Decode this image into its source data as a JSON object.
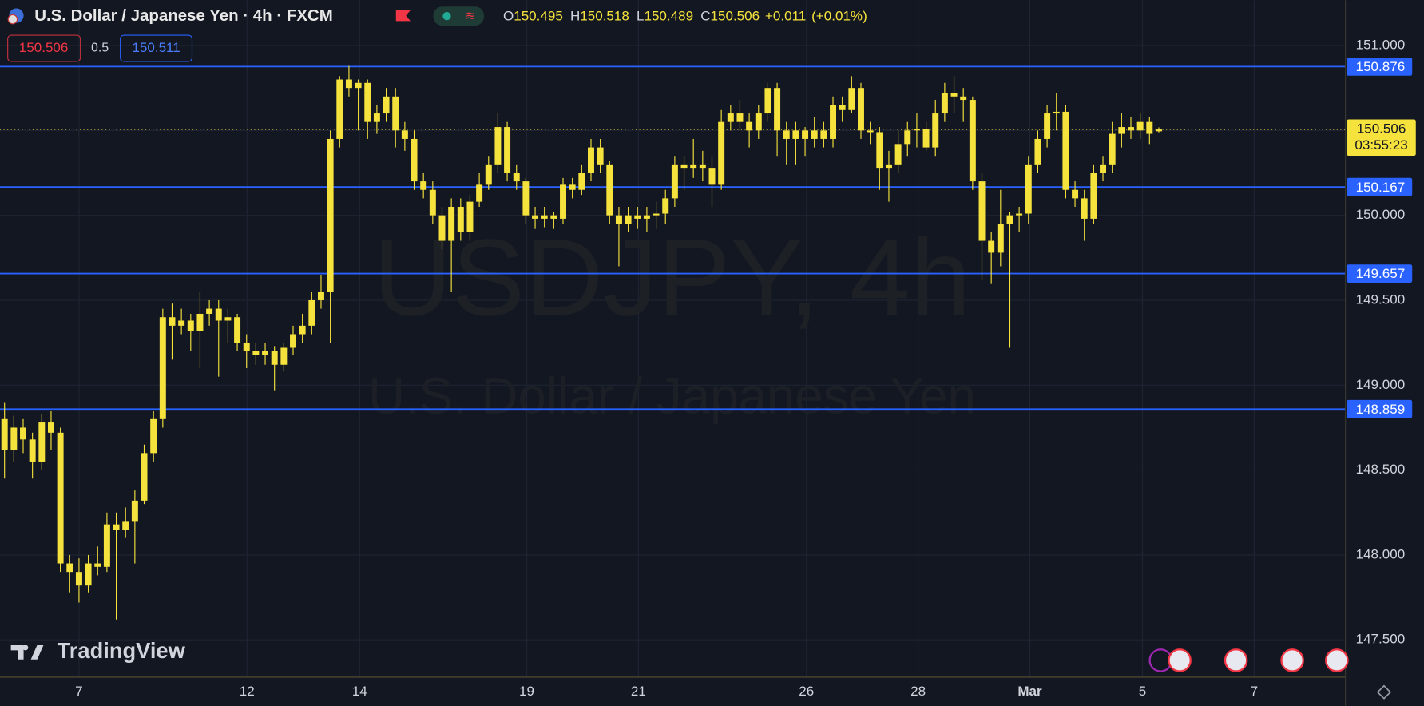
{
  "header": {
    "title": "U.S. Dollar / Japanese Yen · 4h · FXCM",
    "ohlc_labels": [
      "O",
      "H",
      "L",
      "C"
    ],
    "ohlc": [
      150.495,
      150.518,
      150.489,
      150.506
    ],
    "change": "+0.011",
    "change_pct": "(+0.01%)",
    "sell": "150.506",
    "spread": "0.5",
    "buy": "150.511"
  },
  "watermark": {
    "symbol": "USDJPY, 4h",
    "name": "U.S. Dollar / Japanese Yen"
  },
  "brand": "TradingView",
  "chart_data": {
    "type": "candlestick",
    "color": "#f5e23c",
    "candles": [
      [
        148.8,
        148.9,
        148.45,
        148.62
      ],
      [
        148.62,
        148.82,
        148.55,
        148.75
      ],
      [
        148.75,
        148.8,
        148.6,
        148.68
      ],
      [
        148.68,
        148.72,
        148.45,
        148.55
      ],
      [
        148.55,
        148.83,
        148.5,
        148.78
      ],
      [
        148.78,
        148.85,
        148.62,
        148.72
      ],
      [
        148.72,
        148.75,
        147.9,
        147.95
      ],
      [
        147.95,
        148.0,
        147.78,
        147.9
      ],
      [
        147.9,
        147.98,
        147.72,
        147.82
      ],
      [
        147.82,
        148.0,
        147.78,
        147.95
      ],
      [
        147.95,
        148.05,
        147.88,
        147.93
      ],
      [
        147.93,
        148.25,
        147.9,
        148.18
      ],
      [
        148.18,
        148.25,
        147.62,
        148.15
      ],
      [
        148.15,
        148.28,
        148.1,
        148.2
      ],
      [
        148.2,
        148.38,
        147.95,
        148.32
      ],
      [
        148.32,
        148.65,
        148.3,
        148.6
      ],
      [
        148.6,
        148.85,
        148.55,
        148.8
      ],
      [
        148.8,
        149.45,
        148.75,
        149.4
      ],
      [
        149.4,
        149.48,
        149.15,
        149.35
      ],
      [
        149.35,
        149.45,
        149.3,
        149.38
      ],
      [
        149.38,
        149.42,
        149.2,
        149.32
      ],
      [
        149.32,
        149.55,
        149.1,
        149.42
      ],
      [
        149.42,
        149.5,
        149.35,
        149.45
      ],
      [
        149.45,
        149.5,
        149.05,
        149.38
      ],
      [
        149.38,
        149.45,
        149.25,
        149.4
      ],
      [
        149.4,
        149.42,
        149.2,
        149.25
      ],
      [
        149.25,
        149.3,
        149.1,
        149.2
      ],
      [
        149.2,
        149.25,
        149.12,
        149.18
      ],
      [
        149.18,
        149.25,
        149.12,
        149.2
      ],
      [
        149.2,
        149.23,
        148.97,
        149.12
      ],
      [
        149.12,
        149.25,
        149.08,
        149.22
      ],
      [
        149.22,
        149.35,
        149.18,
        149.3
      ],
      [
        149.3,
        149.42,
        149.25,
        149.35
      ],
      [
        149.35,
        149.55,
        149.3,
        149.5
      ],
      [
        149.5,
        149.65,
        149.45,
        149.55
      ],
      [
        149.55,
        150.5,
        149.25,
        150.45
      ],
      [
        150.45,
        150.82,
        150.4,
        150.8
      ],
      [
        150.8,
        150.88,
        150.7,
        150.75
      ],
      [
        150.75,
        150.8,
        150.5,
        150.78
      ],
      [
        150.78,
        150.8,
        150.45,
        150.55
      ],
      [
        150.55,
        150.65,
        150.48,
        150.6
      ],
      [
        150.6,
        150.75,
        150.55,
        150.7
      ],
      [
        150.7,
        150.75,
        150.4,
        150.5
      ],
      [
        150.5,
        150.55,
        150.38,
        150.45
      ],
      [
        150.45,
        150.5,
        150.15,
        150.2
      ],
      [
        150.2,
        150.25,
        150.1,
        150.15
      ],
      [
        150.15,
        150.2,
        149.95,
        150.0
      ],
      [
        150.0,
        150.05,
        149.8,
        149.85
      ],
      [
        149.85,
        150.1,
        149.55,
        150.05
      ],
      [
        150.05,
        150.1,
        149.85,
        149.9
      ],
      [
        149.9,
        150.12,
        149.85,
        150.08
      ],
      [
        150.08,
        150.25,
        150.05,
        150.18
      ],
      [
        150.18,
        150.35,
        150.15,
        150.3
      ],
      [
        150.3,
        150.6,
        150.25,
        150.52
      ],
      [
        150.52,
        150.55,
        150.2,
        150.25
      ],
      [
        150.25,
        150.3,
        150.15,
        150.2
      ],
      [
        150.2,
        150.22,
        149.95,
        150.0
      ],
      [
        150.0,
        150.05,
        149.92,
        149.98
      ],
      [
        149.98,
        150.05,
        149.93,
        150.0
      ],
      [
        150.0,
        150.02,
        149.92,
        149.98
      ],
      [
        149.98,
        150.22,
        149.95,
        150.18
      ],
      [
        150.18,
        150.22,
        150.1,
        150.15
      ],
      [
        150.15,
        150.3,
        150.12,
        150.25
      ],
      [
        150.25,
        150.45,
        150.2,
        150.4
      ],
      [
        150.4,
        150.45,
        150.25,
        150.3
      ],
      [
        150.3,
        150.32,
        149.95,
        150.0
      ],
      [
        150.0,
        150.05,
        149.7,
        149.95
      ],
      [
        149.95,
        150.05,
        149.9,
        150.0
      ],
      [
        150.0,
        150.05,
        149.92,
        149.98
      ],
      [
        149.98,
        150.05,
        149.9,
        150.0
      ],
      [
        150.0,
        150.08,
        149.92,
        150.01
      ],
      [
        150.01,
        150.15,
        149.95,
        150.1
      ],
      [
        150.1,
        150.35,
        150.05,
        150.3
      ],
      [
        150.3,
        150.35,
        150.15,
        150.28
      ],
      [
        150.28,
        150.45,
        150.22,
        150.3
      ],
      [
        150.3,
        150.38,
        150.2,
        150.28
      ],
      [
        150.28,
        150.35,
        150.05,
        150.18
      ],
      [
        150.18,
        150.62,
        150.15,
        150.55
      ],
      [
        150.55,
        150.65,
        150.5,
        150.6
      ],
      [
        150.6,
        150.68,
        150.5,
        150.55
      ],
      [
        150.55,
        150.6,
        150.4,
        150.5
      ],
      [
        150.5,
        150.65,
        150.45,
        150.6
      ],
      [
        150.6,
        150.78,
        150.55,
        150.75
      ],
      [
        150.75,
        150.78,
        150.35,
        150.5
      ],
      [
        150.5,
        150.55,
        150.3,
        150.45
      ],
      [
        150.45,
        150.55,
        150.3,
        150.5
      ],
      [
        150.5,
        150.52,
        150.35,
        150.45
      ],
      [
        150.45,
        150.58,
        150.4,
        150.5
      ],
      [
        150.5,
        150.55,
        150.4,
        150.45
      ],
      [
        150.45,
        150.7,
        150.4,
        150.65
      ],
      [
        150.65,
        150.7,
        150.55,
        150.62
      ],
      [
        150.62,
        150.82,
        150.6,
        150.75
      ],
      [
        150.75,
        150.78,
        150.45,
        150.5
      ],
      [
        150.5,
        150.55,
        150.42,
        150.49
      ],
      [
        150.49,
        150.52,
        150.15,
        150.28
      ],
      [
        150.28,
        150.38,
        150.08,
        150.3
      ],
      [
        150.3,
        150.5,
        150.25,
        150.42
      ],
      [
        150.42,
        150.55,
        150.35,
        150.5
      ],
      [
        150.5,
        150.6,
        150.4,
        150.51
      ],
      [
        150.51,
        150.55,
        150.38,
        150.4
      ],
      [
        150.4,
        150.68,
        150.35,
        150.6
      ],
      [
        150.6,
        150.78,
        150.55,
        150.72
      ],
      [
        150.72,
        150.82,
        150.6,
        150.7
      ],
      [
        150.7,
        150.75,
        150.55,
        150.68
      ],
      [
        150.68,
        150.7,
        150.15,
        150.2
      ],
      [
        150.2,
        150.25,
        149.62,
        149.85
      ],
      [
        149.85,
        149.9,
        149.6,
        149.78
      ],
      [
        149.78,
        150.15,
        149.7,
        149.95
      ],
      [
        149.95,
        150.02,
        149.22,
        150.0
      ],
      [
        150.0,
        150.05,
        149.9,
        150.01
      ],
      [
        150.01,
        150.35,
        149.95,
        150.3
      ],
      [
        150.3,
        150.5,
        150.25,
        150.45
      ],
      [
        150.45,
        150.65,
        150.4,
        150.6
      ],
      [
        150.6,
        150.72,
        150.5,
        150.61
      ],
      [
        150.61,
        150.65,
        150.1,
        150.15
      ],
      [
        150.15,
        150.2,
        150.05,
        150.1
      ],
      [
        150.1,
        150.15,
        149.85,
        149.98
      ],
      [
        149.98,
        150.3,
        149.95,
        150.25
      ],
      [
        150.25,
        150.35,
        150.2,
        150.3
      ],
      [
        150.3,
        150.55,
        150.25,
        150.48
      ],
      [
        150.48,
        150.6,
        150.4,
        150.52
      ],
      [
        150.52,
        150.58,
        150.45,
        150.5
      ],
      [
        150.5,
        150.6,
        150.45,
        150.55
      ],
      [
        150.55,
        150.58,
        150.42,
        150.48
      ],
      [
        150.495,
        150.518,
        150.489,
        150.506
      ]
    ],
    "ylim": [
      147.283,
      151.267
    ],
    "yticks": [
      {
        "value": 147.5,
        "label": "147.500"
      },
      {
        "value": 148,
        "label": "148.000"
      },
      {
        "value": 148.5,
        "label": "148.500"
      },
      {
        "value": 149,
        "label": "149.000"
      },
      {
        "value": 149.5,
        "label": "149.500"
      },
      {
        "value": 150,
        "label": "150.000"
      },
      {
        "value": 150.5,
        "label": "150.500"
      },
      {
        "value": 151,
        "label": "151.000"
      }
    ],
    "grid": true,
    "hlines": [
      150.876,
      150.167,
      149.657,
      148.859
    ],
    "hline_color": "#2962ff",
    "last_price": 150.506,
    "countdown": "03:55:23",
    "x_labels": [
      "7",
      "12",
      "14",
      "19",
      "21",
      "26",
      "28",
      "Mar",
      "5",
      "7"
    ]
  }
}
